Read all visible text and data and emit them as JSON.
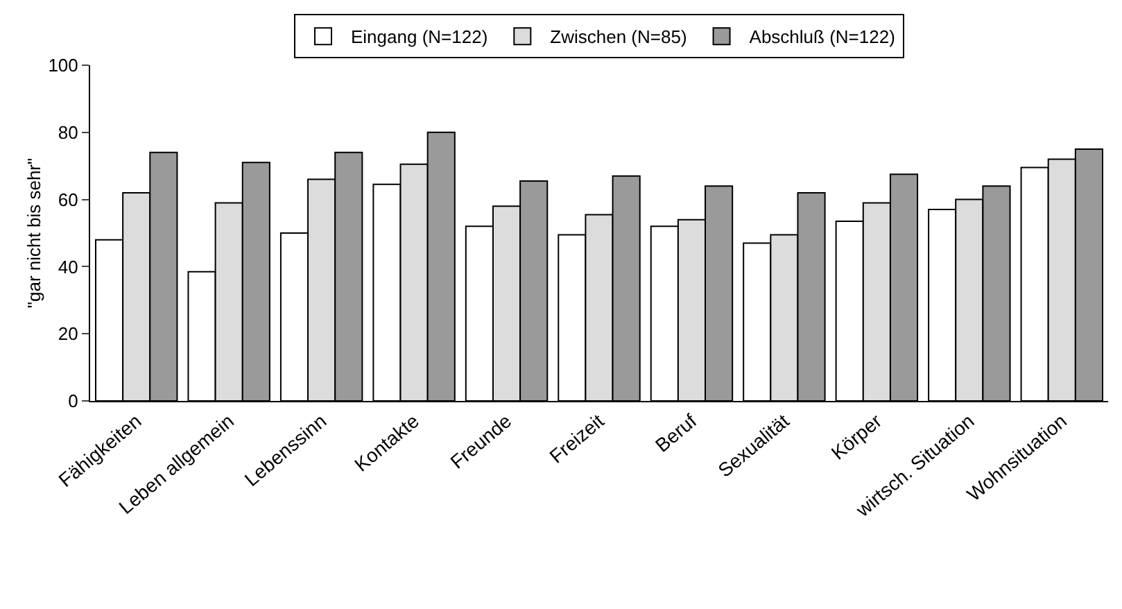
{
  "chart_data": {
    "type": "bar",
    "ylabel": "\"gar nicht bis sehr\"",
    "categories": [
      "Fähigkeiten",
      "Leben allgemein",
      "Lebenssinn",
      "Kontakte",
      "Freunde",
      "Freizeit",
      "Beruf",
      "Sexualität",
      "Körper",
      "wirtsch. Situation",
      "Wohnsituation"
    ],
    "series": [
      {
        "name": "Eingang (N=122)",
        "color": "#ffffff",
        "values": [
          48,
          38.5,
          50,
          64.5,
          52,
          49.5,
          52,
          47,
          53.5,
          57,
          69.5
        ]
      },
      {
        "name": "Zwischen (N=85)",
        "color": "#dcdcdc",
        "values": [
          62,
          59,
          66,
          70.5,
          58,
          55.5,
          54,
          49.5,
          59,
          60,
          72
        ]
      },
      {
        "name": "Abschluß (N=122)",
        "color": "#9a9a9a",
        "values": [
          74,
          71,
          74,
          80,
          65.5,
          67,
          64,
          62,
          67.5,
          64,
          75
        ]
      }
    ],
    "ylim": [
      0,
      100
    ],
    "yticks": [
      0,
      20,
      40,
      60,
      80,
      100
    ],
    "grid": false,
    "legend": "top"
  }
}
